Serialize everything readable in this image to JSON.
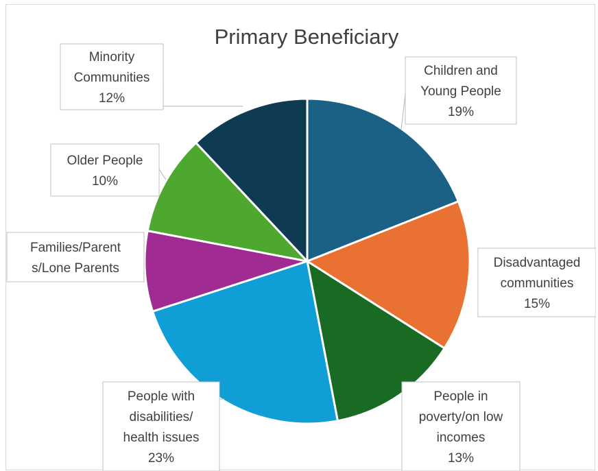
{
  "chart_data": {
    "type": "pie",
    "title": "Primary Beneficiary",
    "slices": [
      {
        "label": [
          "Children and",
          "Young People"
        ],
        "value": 19,
        "value_label": "19%",
        "color": "#1a6185"
      },
      {
        "label": [
          "Disadvantaged",
          "communities"
        ],
        "value": 15,
        "value_label": "15%",
        "color": "#e97132"
      },
      {
        "label": [
          "People in",
          "poverty/on low",
          "incomes"
        ],
        "value": 13,
        "value_label": "13%",
        "color": "#196b24"
      },
      {
        "label": [
          "People with",
          "disabilities/",
          "health issues"
        ],
        "value": 23,
        "value_label": "23%",
        "color": "#0f9ed5"
      },
      {
        "label": [
          "Families/Parent",
          "s/Lone Parents"
        ],
        "value": 8,
        "value_label": "",
        "color": "#a02b93"
      },
      {
        "label": [
          "Older People"
        ],
        "value": 10,
        "value_label": "10%",
        "color": "#4ea72e"
      },
      {
        "label": [
          "Minority",
          "Communities"
        ],
        "value": 12,
        "value_label": "12%",
        "color": "#0e3a52"
      }
    ],
    "start": "12 o'clock",
    "direction": "clockwise",
    "legend": "none",
    "data_labels": "callout"
  }
}
